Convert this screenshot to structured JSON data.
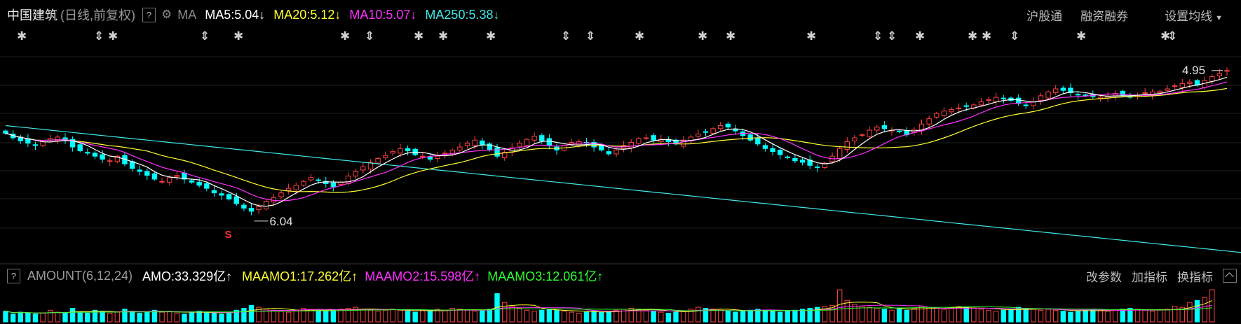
{
  "header": {
    "stock_name": "中国建筑",
    "period": "(日线,前复权)",
    "help": "?",
    "ma_label": "MA",
    "ma5": "MA5:5.04",
    "ma20": "MA20:5.12",
    "ma10": "MA10:5.07",
    "ma250": "MA250:5.38",
    "arrow_down": "↓",
    "links": [
      "沪股通",
      "融资融券",
      "设置均线"
    ]
  },
  "events": {
    "symbol": "✱",
    "arrow_symbol": "⇕"
  },
  "annotations": {
    "low_price": "6.04",
    "high_price": "4.95",
    "signal": "S"
  },
  "indicator": {
    "help": "?",
    "name": "AMOUNT(6,12,24)",
    "amo": "AMO:33.329亿",
    "maamo1": "MAAMO1:17.262亿",
    "maamo2": "MAAMO2:15.598亿",
    "maamo3": "MAAMO3:12.061亿",
    "arrow_up": "↑",
    "buttons": [
      "改参数",
      "加指标",
      "换指标"
    ]
  },
  "colors": {
    "up": "#ff4040",
    "down": "#00ffff",
    "ma5": "#ffffff",
    "ma10": "#ff30ff",
    "ma20": "#ffff30",
    "ma250": "#40e8e8",
    "background": "#000000"
  },
  "chart_data": {
    "type": "candlestick",
    "price_range": [
      4.0,
      6.3
    ],
    "closes": [
      6.08,
      6.02,
      5.98,
      5.95,
      5.92,
      5.97,
      6.01,
      6.03,
      5.99,
      5.9,
      5.85,
      5.82,
      5.78,
      5.74,
      5.72,
      5.78,
      5.68,
      5.62,
      5.58,
      5.53,
      5.48,
      5.45,
      5.5,
      5.53,
      5.48,
      5.44,
      5.4,
      5.36,
      5.3,
      5.27,
      5.22,
      5.16,
      5.1,
      5.06,
      5.12,
      5.19,
      5.24,
      5.3,
      5.36,
      5.4,
      5.45,
      5.5,
      5.46,
      5.42,
      5.38,
      5.44,
      5.52,
      5.58,
      5.64,
      5.7,
      5.75,
      5.79,
      5.84,
      5.88,
      5.85,
      5.8,
      5.78,
      5.74,
      5.78,
      5.82,
      5.86,
      5.9,
      5.95,
      5.99,
      5.93,
      5.86,
      5.78,
      5.83,
      5.89,
      5.95,
      6.0,
      6.04,
      5.98,
      5.92,
      5.86,
      5.92,
      5.96,
      5.97,
      5.95,
      5.9,
      5.86,
      5.81,
      5.86,
      5.92,
      5.96,
      6.01,
      6.02,
      5.99,
      6.0,
      5.97,
      5.94,
      5.99,
      6.03,
      6.07,
      6.1,
      6.14,
      6.18,
      6.16,
      6.11,
      6.05,
      5.99,
      5.94,
      5.88,
      5.84,
      5.8,
      5.76,
      5.72,
      5.7,
      5.66,
      5.63,
      5.69,
      5.78,
      5.88,
      5.97,
      6.02,
      6.06,
      6.12,
      6.16,
      6.14,
      6.12,
      6.1,
      6.06,
      6.13,
      6.2,
      6.27,
      6.34,
      6.37,
      6.39,
      6.41,
      6.43,
      6.45,
      6.49,
      6.52,
      6.55,
      6.53,
      6.51,
      6.47,
      6.44,
      6.49,
      6.57,
      6.62,
      6.66,
      6.64,
      6.61,
      6.58,
      6.57,
      6.56,
      6.55,
      6.56,
      6.6,
      6.58,
      6.56,
      6.58,
      6.61,
      6.62,
      6.63,
      6.66,
      6.7,
      6.73,
      6.75,
      6.71,
      6.77,
      6.82,
      6.86,
      6.9
    ],
    "amount": [
      11,
      8,
      10,
      9,
      8,
      9,
      12,
      10,
      9,
      14,
      10,
      9,
      12,
      11,
      9,
      10,
      13,
      11,
      9,
      10,
      12,
      10,
      11,
      9,
      8,
      10,
      11,
      10,
      9,
      8,
      10,
      12,
      14,
      17,
      15,
      13,
      12,
      11,
      10,
      12,
      14,
      13,
      12,
      11,
      12,
      13,
      14,
      15,
      13,
      12,
      11,
      12,
      13,
      12,
      11,
      10,
      12,
      11,
      13,
      12,
      14,
      13,
      12,
      11,
      12,
      13,
      29,
      20,
      16,
      14,
      12,
      11,
      12,
      13,
      12,
      11,
      10,
      9,
      10,
      11,
      10,
      11,
      12,
      13,
      14,
      13,
      12,
      11,
      10,
      9,
      10,
      11,
      13,
      15,
      14,
      13,
      12,
      11,
      10,
      11,
      12,
      13,
      12,
      11,
      10,
      11,
      12,
      13,
      14,
      15,
      16,
      17,
      33,
      22,
      18,
      16,
      15,
      14,
      13,
      12,
      13,
      12,
      14,
      16,
      15,
      14,
      13,
      14,
      16,
      15,
      14,
      13,
      12,
      11,
      12,
      13,
      15,
      14,
      13,
      12,
      13,
      12,
      11,
      10,
      11,
      12,
      13,
      12,
      11,
      12,
      13,
      14,
      13,
      12,
      11,
      12,
      13,
      16,
      15,
      20,
      22,
      25,
      33
    ],
    "ma250": [
      6.18,
      6.17,
      6.16,
      6.15,
      6.14,
      6.13,
      6.12,
      6.11,
      6.1,
      6.09,
      6.08,
      6.07,
      6.06,
      6.05,
      6.04,
      6.03,
      6.02,
      6.01,
      6.0,
      5.99,
      5.98,
      5.97,
      5.96,
      5.95,
      5.94,
      5.93,
      5.92,
      5.91,
      5.9,
      5.89,
      5.88,
      5.87,
      5.86,
      5.85,
      5.84,
      5.83,
      5.82,
      5.81,
      5.8,
      5.79,
      5.78,
      5.77,
      5.76,
      5.75,
      5.74,
      5.73,
      5.72,
      5.71,
      5.7,
      5.69,
      5.68,
      5.67,
      5.66,
      5.65,
      5.64,
      5.63,
      5.62,
      5.61,
      5.6,
      5.59,
      5.58,
      5.57,
      5.56,
      5.55,
      5.54,
      5.53,
      5.52,
      5.51,
      5.5,
      5.49,
      5.48,
      5.47,
      5.46,
      5.45,
      5.44,
      5.43,
      5.42,
      5.41,
      5.4,
      5.39,
      5.38,
      5.37,
      5.36,
      5.35,
      5.34,
      5.33,
      5.32,
      5.31,
      5.3,
      5.29,
      5.28,
      5.27,
      5.26,
      5.25,
      5.24,
      5.23,
      5.22,
      5.21,
      5.2,
      5.19,
      5.18,
      5.17,
      5.16,
      5.15,
      5.14,
      5.13,
      5.12,
      5.11,
      5.1,
      5.09,
      5.08,
      5.07,
      5.06,
      5.05,
      5.04,
      5.03,
      5.02,
      5.01,
      5.0,
      4.99,
      4.98,
      4.97,
      4.96,
      4.95,
      4.94,
      4.93,
      4.92,
      4.91,
      4.9,
      4.89,
      4.88,
      4.87,
      4.86,
      4.85,
      4.84,
      4.83,
      4.82,
      4.81,
      4.8,
      4.79,
      4.78,
      4.77,
      4.76,
      4.75,
      4.74,
      4.73,
      4.72,
      4.71,
      4.7,
      4.69,
      4.68,
      4.67,
      4.66,
      4.65,
      4.64,
      4.63,
      4.62,
      4.61,
      4.6,
      4.59,
      4.58,
      4.57,
      4.56,
      4.55,
      4.54,
      4.53,
      4.52,
      4.51,
      4.5
    ]
  }
}
